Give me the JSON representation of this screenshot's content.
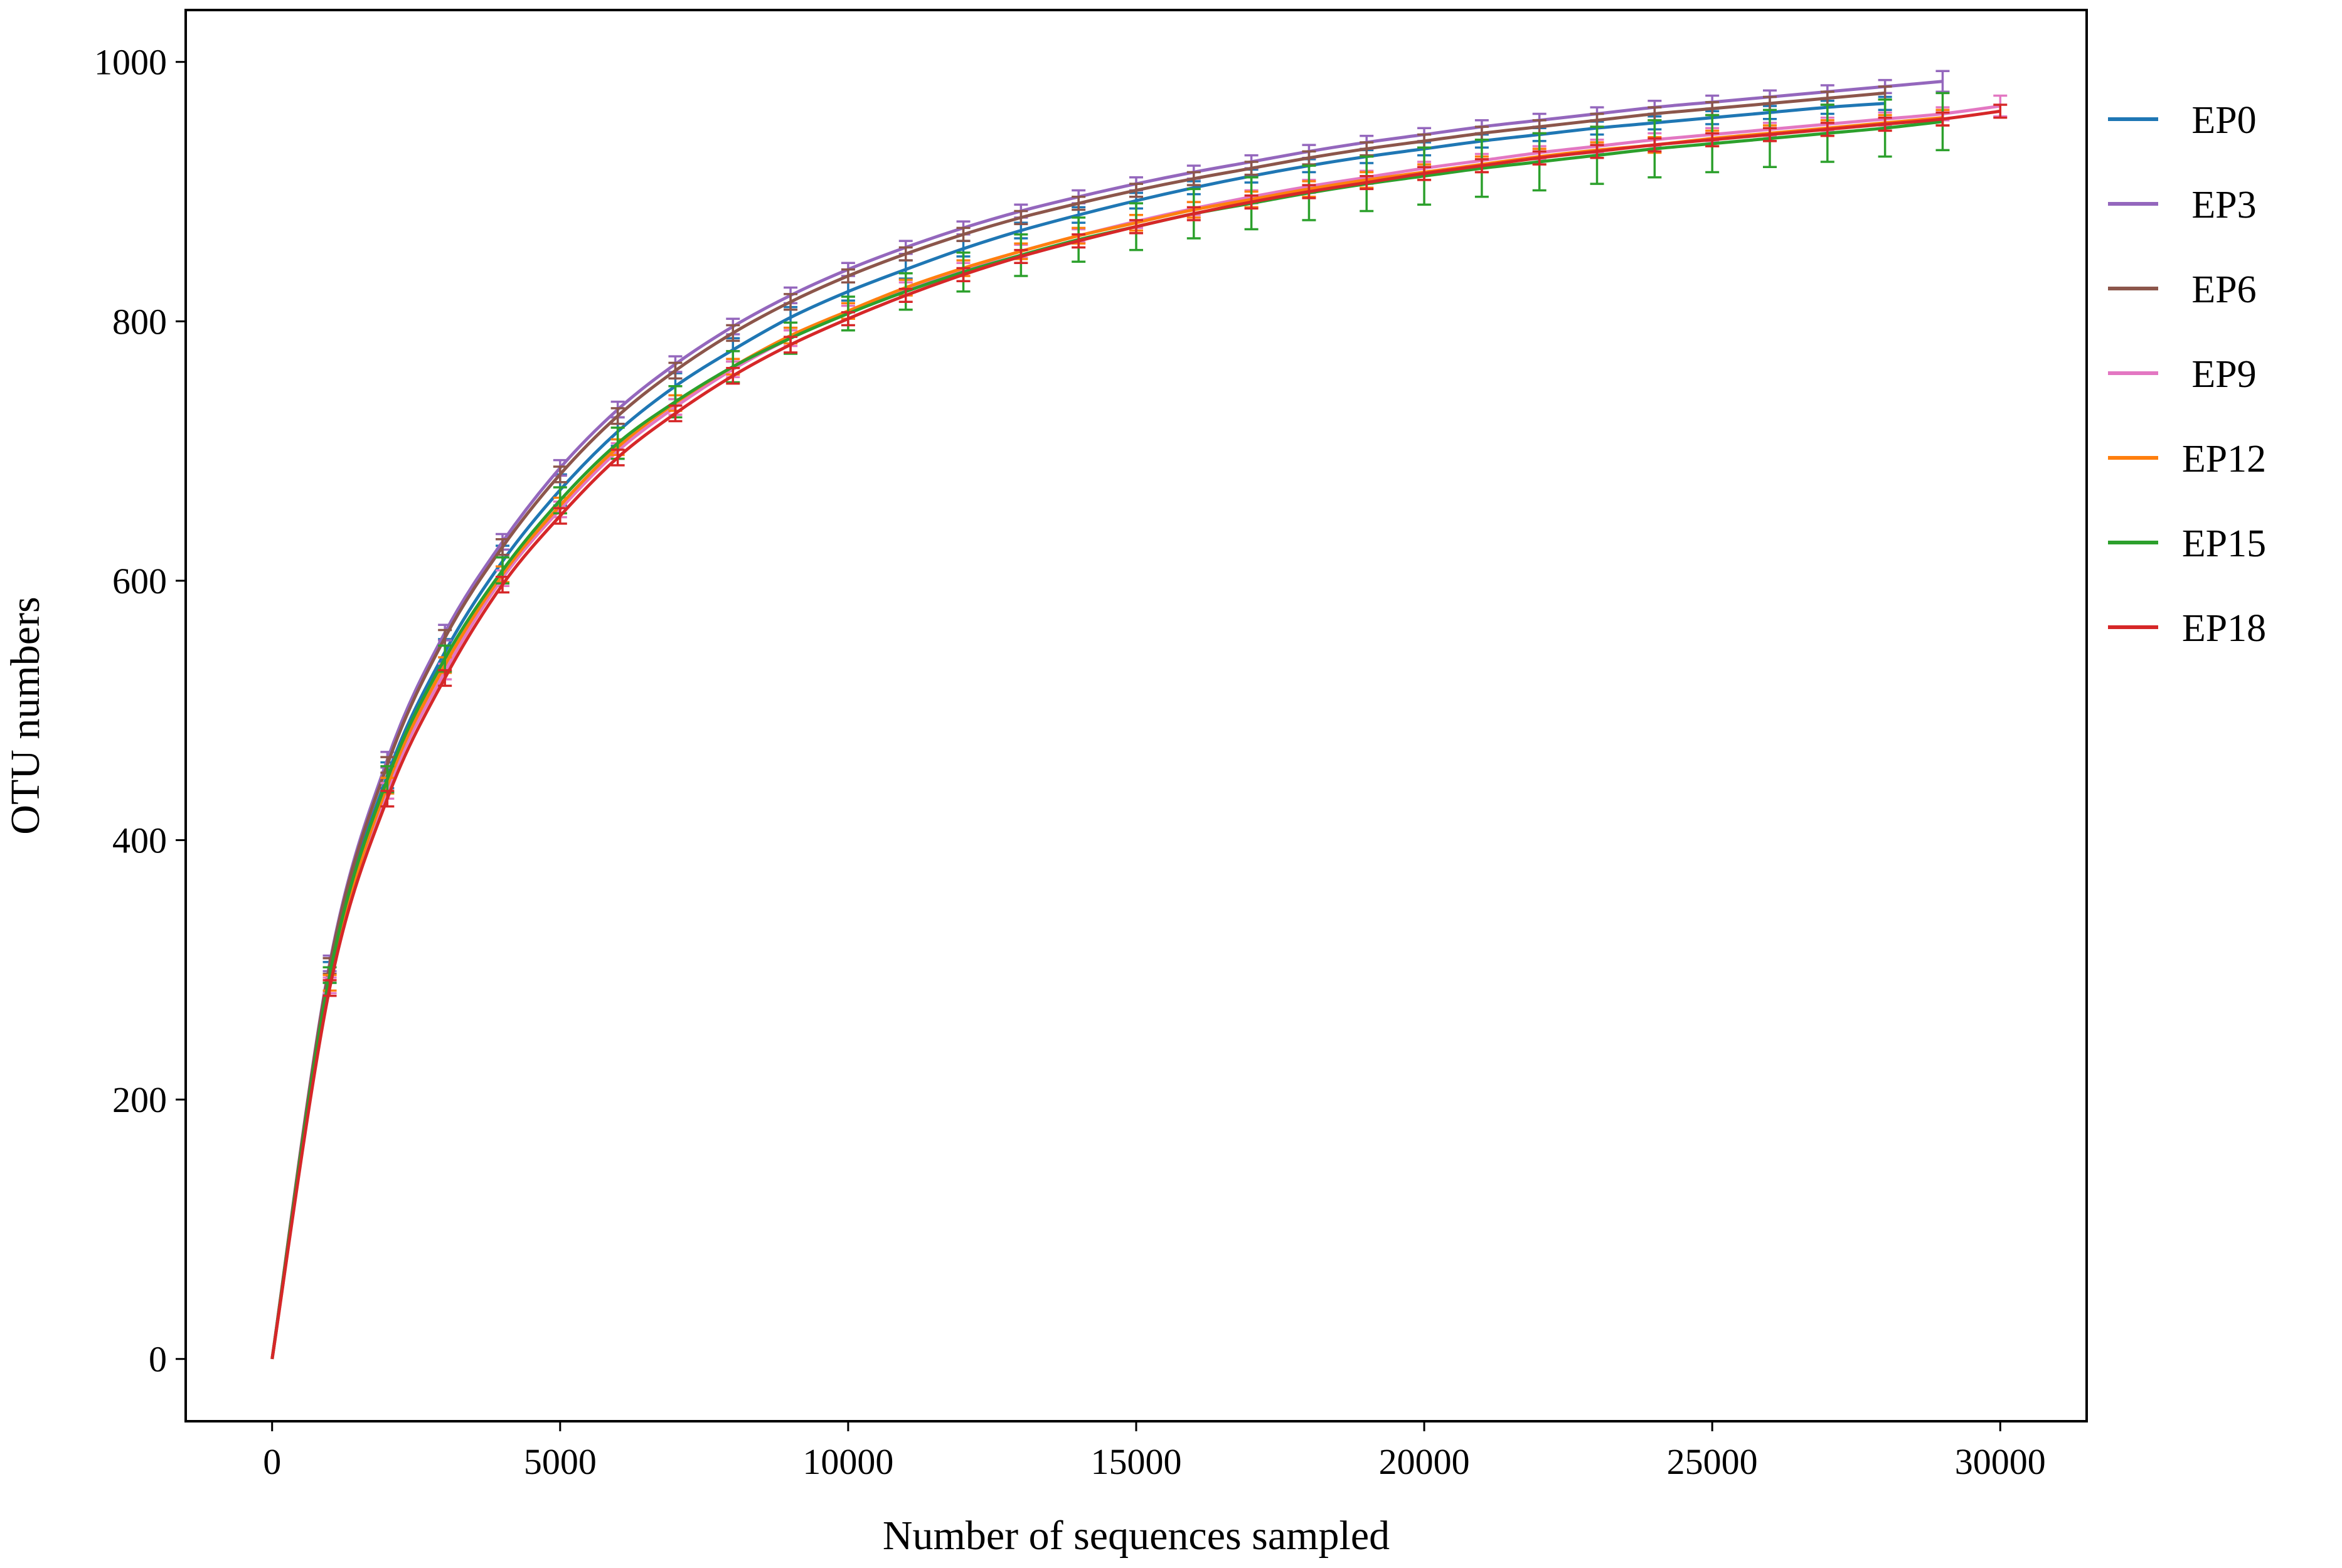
{
  "chart_data": {
    "type": "line",
    "title": "",
    "xlabel": "Number of sequences sampled",
    "ylabel": "OTU numbers",
    "xlim": [
      -1500,
      31500
    ],
    "ylim": [
      -48,
      1040
    ],
    "x_ticks": [
      0,
      5000,
      10000,
      15000,
      20000,
      25000,
      30000
    ],
    "y_ticks": [
      0,
      200,
      400,
      600,
      800,
      1000
    ],
    "grid": false,
    "legend_position": "outside-right",
    "series": [
      {
        "name": "EP0",
        "color": "#1f77b4",
        "x": [
          0,
          1000,
          2000,
          3000,
          4000,
          5000,
          6000,
          7000,
          8000,
          9000,
          10000,
          11000,
          12000,
          13000,
          14000,
          15000,
          16000,
          17000,
          18000,
          19000,
          20000,
          21000,
          22000,
          23000,
          24000,
          25000,
          26000,
          27000,
          28000
        ],
        "y": [
          0,
          298,
          450,
          545,
          615,
          670,
          715,
          750,
          778,
          803,
          823,
          840,
          856,
          870,
          882,
          893,
          903,
          912,
          920,
          927,
          933,
          939,
          944,
          949,
          953,
          957,
          961,
          965,
          968
        ],
        "err": [
          0,
          8,
          10,
          10,
          12,
          12,
          11,
          10,
          9,
          8,
          7,
          7,
          6,
          6,
          6,
          6,
          5,
          5,
          5,
          5,
          5,
          5,
          5,
          5,
          5,
          5,
          5,
          5,
          5
        ]
      },
      {
        "name": "EP3",
        "color": "#9467bd",
        "x": [
          0,
          1000,
          2000,
          3000,
          4000,
          5000,
          6000,
          7000,
          8000,
          9000,
          10000,
          11000,
          12000,
          13000,
          14000,
          15000,
          16000,
          17000,
          18000,
          19000,
          20000,
          21000,
          22000,
          23000,
          24000,
          25000,
          26000,
          27000,
          28000,
          29000
        ],
        "y": [
          0,
          305,
          462,
          560,
          630,
          687,
          732,
          767,
          796,
          820,
          840,
          857,
          872,
          885,
          896,
          906,
          915,
          923,
          931,
          938,
          944,
          950,
          955,
          960,
          965,
          969,
          973,
          977,
          981,
          985
        ],
        "err": [
          0,
          6,
          6,
          6,
          6,
          6,
          6,
          6,
          6,
          6,
          5,
          5,
          5,
          5,
          5,
          5,
          5,
          5,
          5,
          5,
          5,
          5,
          5,
          5,
          5,
          5,
          5,
          5,
          5,
          8
        ]
      },
      {
        "name": "EP6",
        "color": "#8c564b",
        "x": [
          0,
          1000,
          2000,
          3000,
          4000,
          5000,
          6000,
          7000,
          8000,
          9000,
          10000,
          11000,
          12000,
          13000,
          14000,
          15000,
          16000,
          17000,
          18000,
          19000,
          20000,
          21000,
          22000,
          23000,
          24000,
          25000,
          26000,
          27000,
          28000
        ],
        "y": [
          0,
          303,
          458,
          556,
          626,
          682,
          727,
          762,
          791,
          815,
          835,
          852,
          867,
          880,
          891,
          901,
          910,
          918,
          926,
          933,
          939,
          945,
          950,
          955,
          960,
          964,
          968,
          972,
          976
        ],
        "err": [
          0,
          6,
          6,
          6,
          6,
          6,
          6,
          6,
          6,
          6,
          5,
          5,
          5,
          5,
          5,
          5,
          5,
          5,
          5,
          5,
          5,
          5,
          5,
          5,
          5,
          5,
          5,
          5,
          5
        ]
      },
      {
        "name": "EP9",
        "color": "#e377c2",
        "x": [
          0,
          1000,
          2000,
          3000,
          4000,
          5000,
          6000,
          7000,
          8000,
          9000,
          10000,
          11000,
          12000,
          13000,
          14000,
          15000,
          16000,
          17000,
          18000,
          19000,
          20000,
          21000,
          22000,
          23000,
          24000,
          25000,
          26000,
          27000,
          28000,
          29000,
          30000
        ],
        "y": [
          0,
          288,
          438,
          530,
          602,
          655,
          700,
          734,
          763,
          787,
          807,
          825,
          840,
          854,
          866,
          877,
          887,
          896,
          904,
          911,
          918,
          924,
          930,
          935,
          940,
          944,
          948,
          952,
          956,
          960,
          966
        ],
        "err": [
          0,
          6,
          6,
          6,
          6,
          6,
          6,
          6,
          6,
          6,
          5,
          5,
          5,
          5,
          5,
          5,
          5,
          5,
          5,
          5,
          5,
          5,
          5,
          5,
          5,
          5,
          5,
          5,
          5,
          5,
          8
        ]
      },
      {
        "name": "EP12",
        "color": "#ff7f0e",
        "x": [
          0,
          1000,
          2000,
          3000,
          4000,
          5000,
          6000,
          7000,
          8000,
          9000,
          10000,
          11000,
          12000,
          13000,
          14000,
          15000,
          16000,
          17000,
          18000,
          19000,
          20000,
          21000,
          22000,
          23000,
          24000,
          25000,
          26000,
          27000,
          28000,
          29000
        ],
        "y": [
          0,
          290,
          442,
          535,
          605,
          658,
          703,
          737,
          765,
          789,
          808,
          826,
          841,
          854,
          866,
          876,
          886,
          894,
          902,
          909,
          915,
          921,
          927,
          932,
          936,
          941,
          945,
          949,
          953,
          957
        ],
        "err": [
          0,
          6,
          6,
          6,
          6,
          6,
          6,
          6,
          6,
          6,
          6,
          6,
          6,
          6,
          6,
          6,
          6,
          6,
          6,
          6,
          6,
          6,
          6,
          6,
          6,
          6,
          6,
          6,
          6,
          6
        ]
      },
      {
        "name": "EP15",
        "color": "#2ca02c",
        "x": [
          0,
          1000,
          2000,
          3000,
          4000,
          5000,
          6000,
          7000,
          8000,
          9000,
          10000,
          11000,
          12000,
          13000,
          14000,
          15000,
          16000,
          17000,
          18000,
          19000,
          20000,
          21000,
          22000,
          23000,
          24000,
          25000,
          26000,
          27000,
          28000,
          29000
        ],
        "y": [
          0,
          296,
          447,
          540,
          608,
          662,
          706,
          738,
          765,
          787,
          806,
          823,
          838,
          851,
          863,
          873,
          883,
          891,
          899,
          906,
          912,
          918,
          923,
          928,
          933,
          937,
          941,
          945,
          949,
          954
        ],
        "err": [
          0,
          6,
          10,
          10,
          10,
          10,
          12,
          12,
          12,
          12,
          13,
          14,
          15,
          16,
          17,
          18,
          19,
          20,
          21,
          21,
          22,
          22,
          22,
          22,
          22,
          22,
          22,
          22,
          22,
          22
        ]
      },
      {
        "name": "EP18",
        "color": "#d62728",
        "x": [
          0,
          1000,
          2000,
          3000,
          4000,
          5000,
          6000,
          7000,
          8000,
          9000,
          10000,
          11000,
          12000,
          13000,
          14000,
          15000,
          16000,
          17000,
          18000,
          19000,
          20000,
          21000,
          22000,
          23000,
          24000,
          25000,
          26000,
          27000,
          28000,
          29000,
          30000
        ],
        "y": [
          0,
          286,
          432,
          525,
          597,
          650,
          695,
          729,
          758,
          782,
          802,
          820,
          836,
          850,
          862,
          873,
          883,
          892,
          900,
          907,
          914,
          920,
          926,
          931,
          936,
          940,
          944,
          948,
          952,
          956,
          962
        ],
        "err": [
          0,
          6,
          6,
          6,
          6,
          6,
          6,
          6,
          6,
          6,
          5,
          5,
          5,
          5,
          5,
          5,
          5,
          5,
          5,
          5,
          5,
          5,
          5,
          5,
          5,
          5,
          5,
          5,
          5,
          5,
          5
        ]
      }
    ]
  }
}
